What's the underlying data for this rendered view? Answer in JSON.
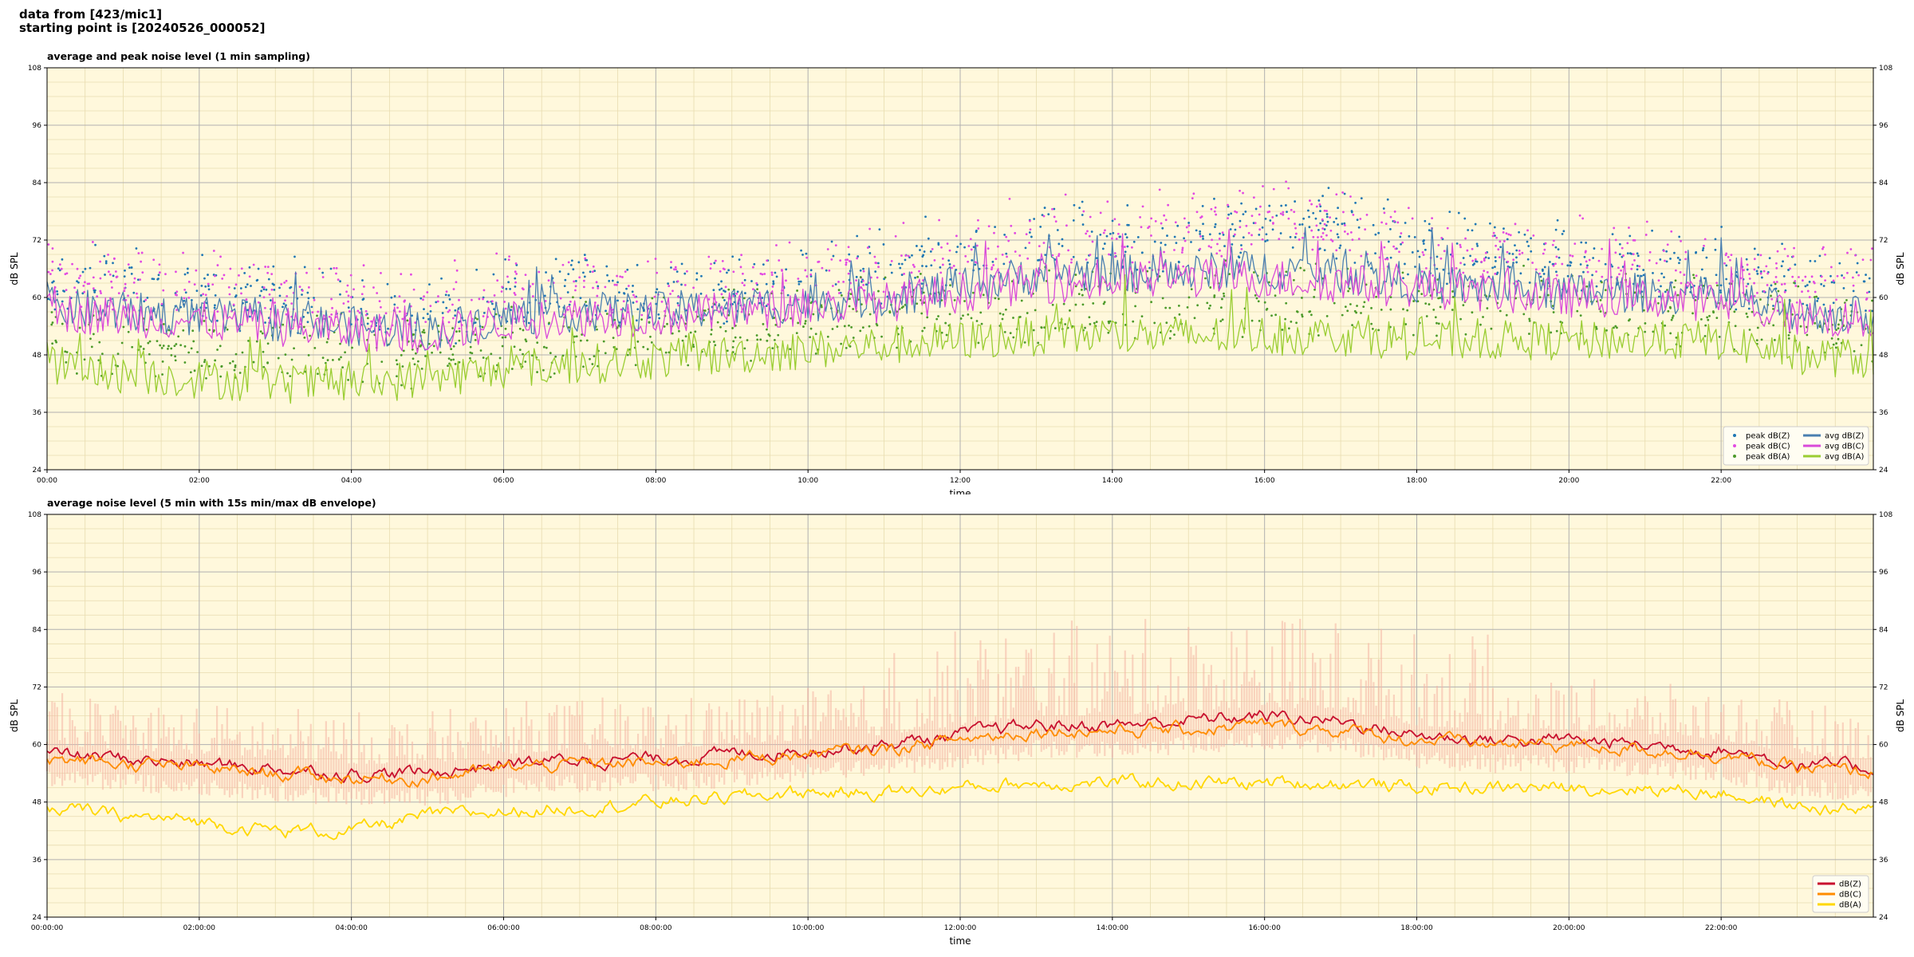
{
  "header": {
    "line1": "data from [423/mic1]",
    "line2": "starting point is [20240526_000052]"
  },
  "chart_data": [
    {
      "type": "line",
      "title": "average and peak noise level (1 min sampling)",
      "xlabel": "time",
      "ylabel": "dB SPL",
      "ylim": [
        24,
        108
      ],
      "yticks": [
        24,
        36,
        48,
        60,
        72,
        84,
        96,
        108
      ],
      "xlim_hours": [
        0,
        24
      ],
      "xtick_labels": [
        "00:00",
        "02:00",
        "04:00",
        "06:00",
        "08:00",
        "10:00",
        "12:00",
        "14:00",
        "16:00",
        "18:00",
        "20:00",
        "22:00"
      ],
      "grid": true,
      "legend_position": "lower-right",
      "background": "#fff8dc",
      "series": [
        {
          "name": "peak dB(Z)",
          "kind": "scatter",
          "color": "#1f77b4",
          "x": [
            0,
            1,
            2,
            3,
            4,
            5,
            6,
            7,
            8,
            9,
            10,
            11,
            12,
            13,
            14,
            15,
            16,
            17,
            18,
            19,
            20,
            21,
            22,
            23,
            24
          ],
          "y": [
            62,
            61,
            60,
            58,
            56,
            55,
            58,
            59,
            59,
            60,
            62,
            64,
            67,
            70,
            70,
            71,
            74,
            72,
            69,
            67,
            66,
            65,
            64,
            61,
            60
          ]
        },
        {
          "name": "peak dB(C)",
          "kind": "scatter",
          "color": "#e24ae2",
          "x": [
            0,
            1,
            2,
            3,
            4,
            5,
            6,
            7,
            8,
            9,
            10,
            11,
            12,
            13,
            14,
            15,
            16,
            17,
            18,
            19,
            20,
            21,
            22,
            23,
            24
          ],
          "y": [
            63,
            62,
            61,
            59,
            57,
            56,
            59,
            60,
            60,
            61,
            63,
            65,
            68,
            71,
            71,
            72,
            75,
            73,
            70,
            68,
            67,
            66,
            65,
            62,
            61
          ]
        },
        {
          "name": "peak dB(A)",
          "kind": "scatter",
          "color": "#4c9a2a",
          "x": [
            0,
            1,
            2,
            3,
            4,
            5,
            6,
            7,
            8,
            9,
            10,
            11,
            12,
            13,
            14,
            15,
            16,
            17,
            18,
            19,
            20,
            21,
            22,
            23,
            24
          ],
          "y": [
            50,
            48,
            47,
            46,
            46,
            47,
            48,
            49,
            50,
            52,
            53,
            55,
            56,
            56,
            57,
            57,
            57,
            57,
            56,
            56,
            55,
            55,
            55,
            53,
            52
          ]
        },
        {
          "name": "avg dB(Z)",
          "kind": "line",
          "color": "#4a7fb0",
          "x": [
            0,
            1,
            2,
            3,
            4,
            5,
            6,
            7,
            8,
            9,
            10,
            11,
            12,
            13,
            14,
            15,
            16,
            17,
            18,
            19,
            20,
            21,
            22,
            23,
            24
          ],
          "y": [
            58,
            57,
            56,
            55,
            54,
            53,
            56,
            57,
            57,
            58,
            59,
            60,
            62,
            65,
            65,
            65,
            66,
            65,
            63,
            62,
            61,
            61,
            60,
            57,
            56
          ]
        },
        {
          "name": "avg dB(C)",
          "kind": "line",
          "color": "#d94ad9",
          "x": [
            0,
            1,
            2,
            3,
            4,
            5,
            6,
            7,
            8,
            9,
            10,
            11,
            12,
            13,
            14,
            15,
            16,
            17,
            18,
            19,
            20,
            21,
            22,
            23,
            24
          ],
          "y": [
            57,
            56,
            55,
            54,
            53,
            52,
            55,
            56,
            56,
            57,
            58,
            59,
            61,
            63,
            63,
            64,
            64,
            63,
            62,
            61,
            60,
            60,
            59,
            56,
            55
          ]
        },
        {
          "name": "avg dB(A)",
          "kind": "line",
          "color": "#9acd32",
          "x": [
            0,
            1,
            2,
            3,
            4,
            5,
            6,
            7,
            8,
            9,
            10,
            11,
            12,
            13,
            14,
            15,
            16,
            17,
            18,
            19,
            20,
            21,
            22,
            23,
            24
          ],
          "y": [
            46,
            44,
            43,
            42,
            42,
            43,
            45,
            46,
            47,
            48,
            49,
            50,
            51,
            52,
            52,
            52,
            52,
            52,
            51,
            51,
            51,
            51,
            51,
            48,
            47
          ]
        }
      ]
    },
    {
      "type": "line",
      "title": "average noise level (5 min with 15s min/max dB envelope)",
      "xlabel": "time",
      "ylabel": "dB SPL",
      "ylim": [
        24,
        108
      ],
      "yticks": [
        24,
        36,
        48,
        60,
        72,
        84,
        96,
        108
      ],
      "xlim_hours": [
        0,
        24
      ],
      "xtick_labels": [
        "00:00:00",
        "02:00:00",
        "04:00:00",
        "06:00:00",
        "08:00:00",
        "10:00:00",
        "12:00:00",
        "14:00:00",
        "16:00:00",
        "18:00:00",
        "20:00:00",
        "22:00:00"
      ],
      "grid": true,
      "legend_position": "lower-right",
      "background": "#fff8dc",
      "envelope_color": "#f5b5a5",
      "series": [
        {
          "name": "dB(Z)",
          "kind": "line",
          "color": "#c8102e",
          "x": [
            0,
            1,
            2,
            3,
            4,
            5,
            6,
            7,
            8,
            9,
            10,
            11,
            12,
            13,
            14,
            15,
            16,
            17,
            18,
            19,
            20,
            21,
            22,
            23,
            24
          ],
          "y": [
            58,
            57,
            56,
            55,
            54,
            54,
            56,
            57,
            57,
            58,
            59,
            60,
            62,
            64,
            64,
            65,
            66,
            65,
            62,
            61,
            61,
            60,
            59,
            56,
            55
          ]
        },
        {
          "name": "dB(C)",
          "kind": "line",
          "color": "#ff8c00",
          "x": [
            0,
            1,
            2,
            3,
            4,
            5,
            6,
            7,
            8,
            9,
            10,
            11,
            12,
            13,
            14,
            15,
            16,
            17,
            18,
            19,
            20,
            21,
            22,
            23,
            24
          ],
          "y": [
            57,
            56,
            55,
            54,
            53,
            53,
            55,
            56,
            56,
            57,
            58,
            59,
            61,
            63,
            63,
            63,
            64,
            63,
            61,
            60,
            60,
            59,
            58,
            55,
            54
          ]
        },
        {
          "name": "dB(A)",
          "kind": "line",
          "color": "#ffd700",
          "x": [
            0,
            1,
            2,
            3,
            4,
            5,
            6,
            7,
            8,
            9,
            10,
            11,
            12,
            13,
            14,
            15,
            16,
            17,
            18,
            19,
            20,
            21,
            22,
            23,
            24
          ],
          "y": [
            47,
            45,
            44,
            42,
            42,
            45,
            46,
            47,
            48,
            49,
            50,
            50,
            51,
            52,
            52,
            52,
            52,
            52,
            51,
            51,
            51,
            51,
            50,
            47,
            46
          ]
        }
      ]
    }
  ]
}
